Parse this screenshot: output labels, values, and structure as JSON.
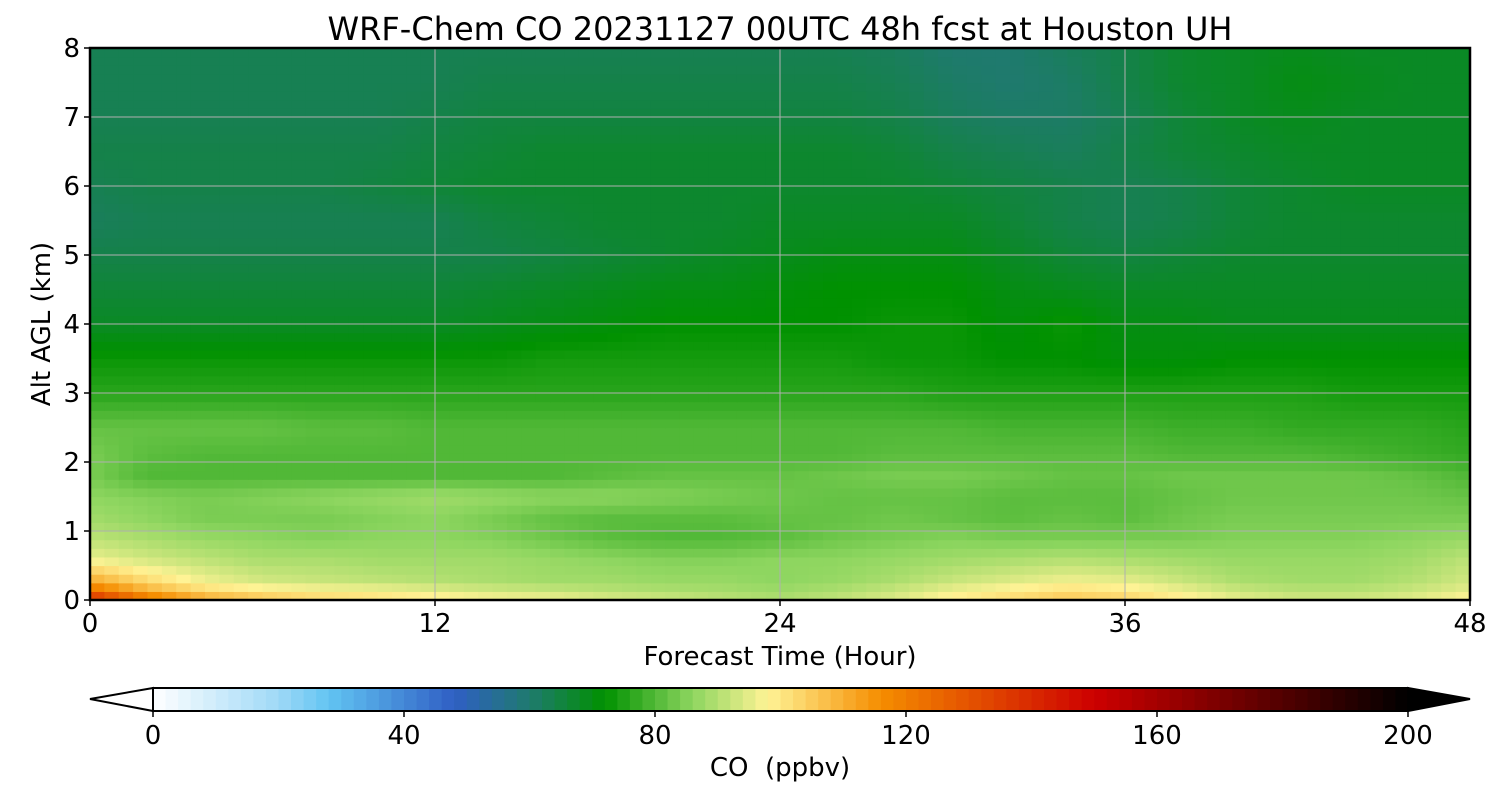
{
  "chart_data": {
    "type": "heatmap",
    "title": "WRF-Chem CO  20231127 00UTC 48h fcst at Houston UH",
    "xlabel": "Forecast Time (Hour)",
    "ylabel": "Alt AGL (km)",
    "xlim": [
      0,
      48
    ],
    "ylim": [
      0,
      8
    ],
    "x_ticks": [
      "0",
      "12",
      "24",
      "36",
      "48"
    ],
    "y_ticks": [
      "0",
      "1",
      "2",
      "3",
      "4",
      "5",
      "6",
      "7",
      "8"
    ],
    "grid": true,
    "colorbar": {
      "label": "CO  (ppbv)",
      "range": [
        0,
        200
      ],
      "ticks": [
        "0",
        "40",
        "80",
        "120",
        "160",
        "200"
      ],
      "extend": "both",
      "stops": [
        {
          "value": 0,
          "color": "#ffffff"
        },
        {
          "value": 20,
          "color": "#9fd9f7"
        },
        {
          "value": 28,
          "color": "#62c4f2"
        },
        {
          "value": 48,
          "color": "#2f5fc4"
        },
        {
          "value": 60,
          "color": "#1f7a6e"
        },
        {
          "value": 72,
          "color": "#009100"
        },
        {
          "value": 86,
          "color": "#8ed660"
        },
        {
          "value": 98,
          "color": "#fff395"
        },
        {
          "value": 116,
          "color": "#f58d00"
        },
        {
          "value": 150,
          "color": "#cd0000"
        },
        {
          "value": 200,
          "color": "#000000"
        }
      ]
    },
    "x": [
      0,
      2,
      4,
      6,
      8,
      10,
      12,
      14,
      16,
      18,
      20,
      22,
      24,
      26,
      28,
      30,
      32,
      34,
      36,
      38,
      40,
      42,
      44,
      46,
      48
    ],
    "y": [
      0,
      0.1,
      0.3,
      0.6,
      0.9,
      1.2,
      1.5,
      1.8,
      2.1,
      2.5,
      3.0,
      3.5,
      4.0,
      4.5,
      5.0,
      5.5,
      6.0,
      6.5,
      7.0,
      7.5,
      8.0
    ],
    "z_ppbv": [
      [
        150,
        125,
        114,
        108,
        105,
        103,
        101,
        99,
        98,
        96,
        94,
        92,
        90,
        92,
        95,
        100,
        103,
        106,
        104,
        100,
        96,
        94,
        94,
        96,
        100
      ],
      [
        125,
        112,
        104,
        101,
        99,
        98,
        96,
        94,
        93,
        91,
        90,
        89,
        88,
        90,
        93,
        97,
        100,
        103,
        101,
        97,
        93,
        91,
        91,
        93,
        96
      ],
      [
        110,
        102,
        96,
        93,
        92,
        91,
        90,
        89,
        88,
        88,
        87,
        87,
        86,
        87,
        89,
        92,
        94,
        96,
        95,
        92,
        89,
        88,
        88,
        90,
        93
      ],
      [
        96,
        93,
        91,
        89,
        89,
        88,
        88,
        88,
        87,
        86,
        85,
        85,
        86,
        86,
        87,
        88,
        89,
        90,
        89,
        88,
        87,
        87,
        87,
        88,
        91
      ],
      [
        91,
        89,
        87,
        86,
        85,
        86,
        86,
        85,
        83,
        81,
        80,
        80,
        81,
        83,
        84,
        85,
        84,
        84,
        84,
        84,
        85,
        85,
        85,
        86,
        87
      ],
      [
        88,
        86,
        84,
        84,
        84,
        85,
        86,
        84,
        82,
        81,
        81,
        81,
        82,
        82,
        83,
        82,
        81,
        82,
        81,
        83,
        84,
        84,
        84,
        84,
        84
      ],
      [
        86,
        85,
        84,
        85,
        86,
        87,
        88,
        87,
        86,
        86,
        85,
        84,
        83,
        82,
        82,
        82,
        81,
        81,
        81,
        82,
        83,
        83,
        83,
        83,
        82
      ],
      [
        84,
        80,
        80,
        80,
        80,
        80,
        80,
        80,
        80,
        81,
        82,
        82,
        82,
        83,
        84,
        84,
        83,
        82,
        82,
        83,
        83,
        83,
        83,
        82,
        80
      ],
      [
        84,
        81,
        80,
        80,
        80,
        80,
        80,
        80,
        80,
        80,
        80,
        80,
        80,
        80,
        81,
        81,
        81,
        81,
        81,
        80,
        80,
        80,
        79,
        78,
        77
      ],
      [
        82,
        82,
        82,
        82,
        81,
        81,
        80,
        80,
        80,
        80,
        80,
        80,
        80,
        80,
        80,
        80,
        79,
        79,
        79,
        78,
        78,
        77,
        77,
        77,
        76
      ],
      [
        76,
        76,
        76,
        76,
        76,
        76,
        76,
        76,
        76,
        76,
        76,
        76,
        76,
        76,
        76,
        75,
        75,
        75,
        75,
        75,
        75,
        75,
        74,
        74,
        74
      ],
      [
        73,
        73,
        73,
        73,
        73,
        73,
        73,
        73,
        74,
        74,
        74,
        74,
        74,
        74,
        73,
        73,
        72,
        72,
        71,
        71,
        72,
        72,
        72,
        72,
        72
      ],
      [
        68,
        68,
        68,
        68,
        68,
        68,
        68,
        69,
        70,
        71,
        72,
        72,
        72,
        72,
        73,
        73,
        71,
        73,
        70,
        70,
        69,
        69,
        69,
        69,
        69
      ],
      [
        66,
        66,
        66,
        66,
        66,
        66,
        66,
        67,
        68,
        69,
        70,
        70,
        71,
        72,
        72,
        72,
        70,
        69,
        68,
        68,
        68,
        68,
        68,
        68,
        68
      ],
      [
        64,
        64,
        64,
        64,
        64,
        64,
        64,
        64,
        65,
        66,
        67,
        68,
        69,
        70,
        70,
        70,
        68,
        66,
        65,
        66,
        67,
        67,
        67,
        67,
        67
      ],
      [
        62,
        63,
        63,
        63,
        63,
        63,
        63,
        65,
        66,
        67,
        67,
        67,
        68,
        68,
        68,
        68,
        66,
        64,
        63,
        64,
        66,
        67,
        67,
        67,
        67
      ],
      [
        63,
        64,
        64,
        64,
        64,
        65,
        66,
        67,
        67,
        67,
        67,
        67,
        67,
        67,
        67,
        66,
        65,
        64,
        63,
        64,
        66,
        67,
        68,
        68,
        68
      ],
      [
        64,
        64,
        64,
        64,
        64,
        64,
        65,
        66,
        67,
        67,
        67,
        67,
        67,
        67,
        66,
        64,
        63,
        62,
        64,
        66,
        67,
        68,
        68,
        68,
        68
      ],
      [
        63,
        63,
        63,
        63,
        63,
        63,
        64,
        65,
        65,
        65,
        65,
        65,
        65,
        65,
        64,
        62,
        61,
        61,
        63,
        66,
        68,
        69,
        68,
        68,
        68
      ],
      [
        63,
        63,
        63,
        63,
        63,
        63,
        63,
        64,
        64,
        64,
        64,
        64,
        64,
        64,
        63,
        61,
        60,
        61,
        64,
        67,
        68,
        70,
        69,
        68,
        68
      ],
      [
        63,
        63,
        63,
        63,
        63,
        63,
        63,
        63,
        63,
        63,
        63,
        63,
        63,
        63,
        62,
        60,
        60,
        62,
        64,
        67,
        68,
        69,
        68,
        68,
        68
      ]
    ]
  }
}
